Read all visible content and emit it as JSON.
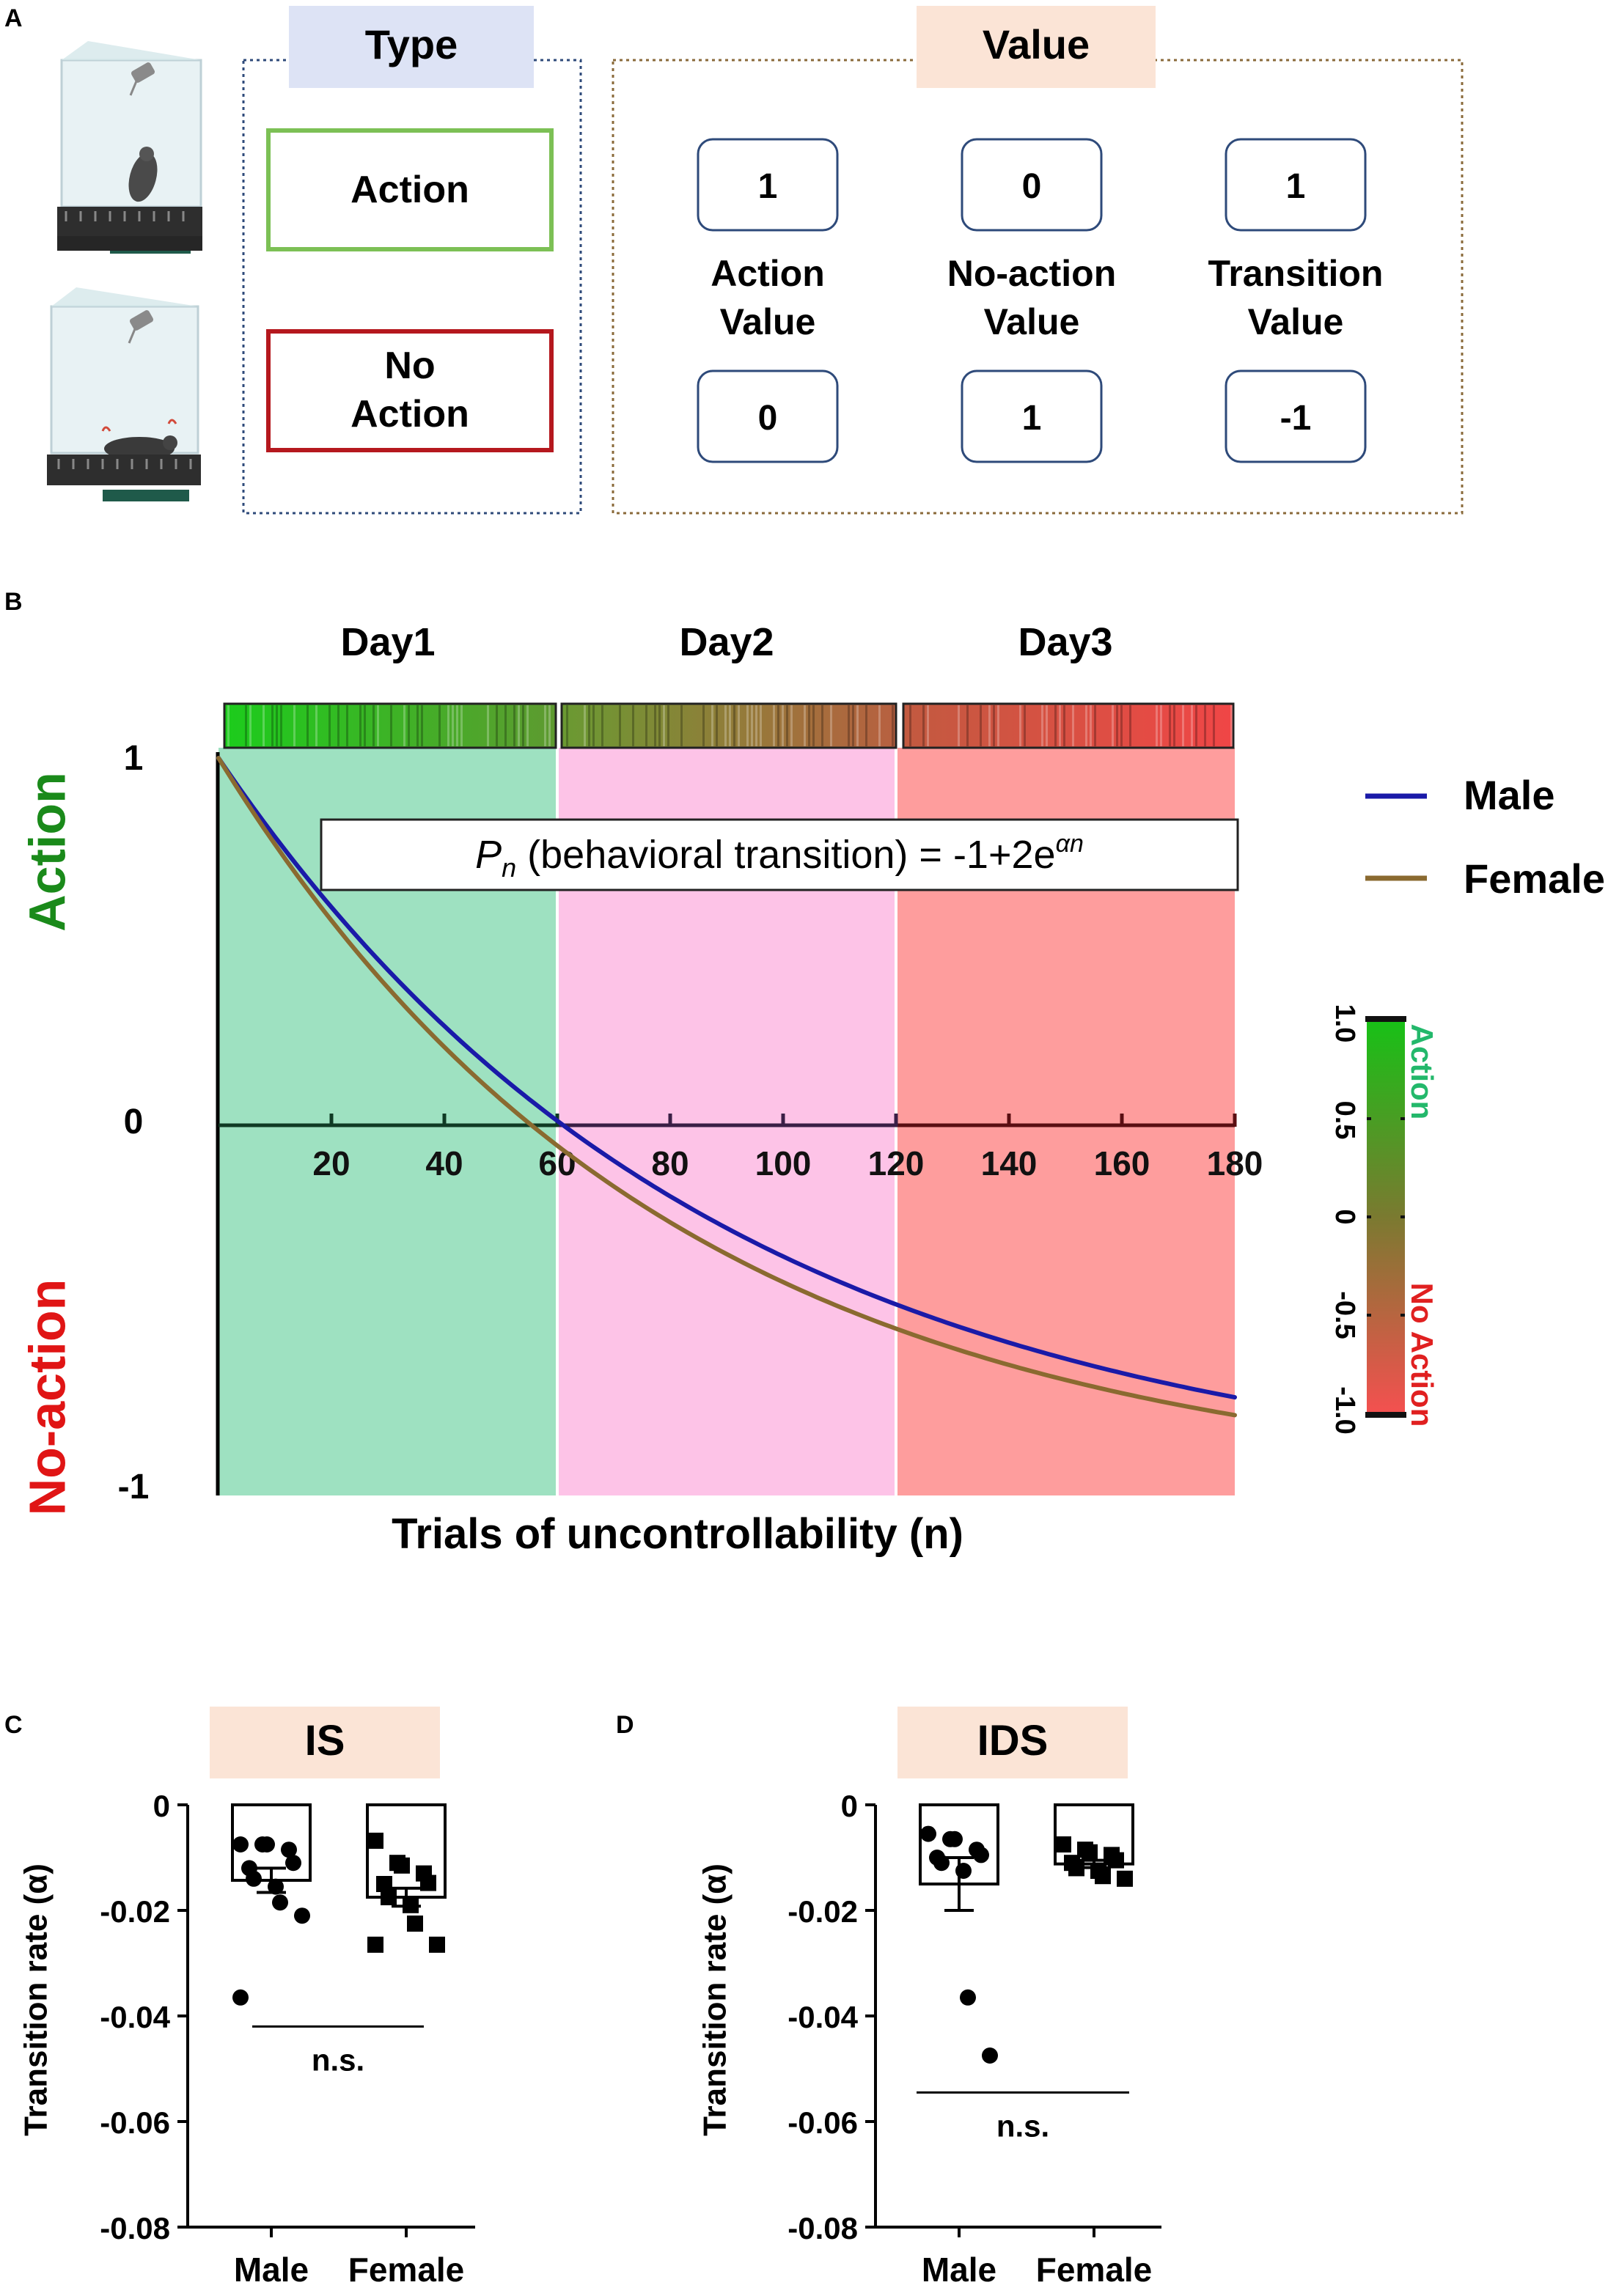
{
  "panel_a": {
    "letter": "A",
    "type_header": "Type",
    "value_header": "Value",
    "action_label": "Action",
    "noaction_label_line1": "No",
    "noaction_label_line2": "Action",
    "columns": [
      {
        "title_line1": "Action",
        "title_line2": "Value",
        "top": "1",
        "bottom": "0"
      },
      {
        "title_line1": "No-action",
        "title_line2": "Value",
        "top": "0",
        "bottom": "1"
      },
      {
        "title_line1": "Transition",
        "title_line2": "Value",
        "top": "1",
        "bottom": "-1"
      }
    ],
    "colors": {
      "type_bg": "#dde3f5",
      "value_bg": "#fbe4d6",
      "action_border": "#7cc055",
      "noaction_border": "#b5181e",
      "value_box": "#2e4a7a"
    }
  },
  "chart_data": [
    {
      "id": "B",
      "type": "line",
      "letter": "B",
      "days": [
        "Day1",
        "Day2",
        "Day3"
      ],
      "day_ranges": [
        [
          0,
          60
        ],
        [
          60,
          120
        ],
        [
          120,
          180
        ]
      ],
      "day_colors": [
        "#9ee1c1",
        "#fdc3e7",
        "#fe9d9d"
      ],
      "x_ticks": [
        20,
        40,
        60,
        80,
        100,
        120,
        140,
        160,
        180
      ],
      "x_tick_labels": [
        "20",
        "40",
        "60",
        "80",
        "100",
        "120",
        "140",
        "160",
        "180"
      ],
      "xlim": [
        0,
        180
      ],
      "ylim": [
        -1,
        1
      ],
      "y_tick_labels": [
        "1",
        "0",
        "-1"
      ],
      "y_top_label": "Action",
      "y_bottom_label": "No-action",
      "xlabel": "Trials of uncontrollability (n)",
      "equation_prefix": "P",
      "equation_sub": "n",
      "equation_main": " (behavioral transition) = -1+2e",
      "equation_sup": "αn",
      "series": [
        {
          "name": "Male",
          "alpha": -0.01135,
          "color": "#1a1aa8"
        },
        {
          "name": "Female",
          "alpha": -0.0125,
          "color": "#8a6a30"
        }
      ],
      "colorbar": {
        "ticks": [
          "1.0",
          "0.5",
          "0",
          "-0.5",
          "-1.0"
        ],
        "top_label": "Action",
        "bottom_label": "No Action",
        "top_color": "#1ab81a",
        "bottom_color": "#f04646"
      }
    },
    {
      "id": "C",
      "type": "bar",
      "letter": "C",
      "title": "IS",
      "ylabel": "Transition rate (α)",
      "ylim": [
        -0.08,
        0
      ],
      "y_ticks": [
        0,
        -0.02,
        -0.04,
        -0.06,
        -0.08
      ],
      "y_tick_labels": [
        "0",
        "-0.02",
        "-0.04",
        "-0.06",
        "-0.08"
      ],
      "categories": [
        "Male",
        "Female"
      ],
      "means": [
        -0.0143,
        -0.0175
      ],
      "sems": [
        0.0023,
        0.0017
      ],
      "points": [
        [
          -0.0075,
          -0.0075,
          -0.0075,
          -0.0085,
          -0.011,
          -0.012,
          -0.014,
          -0.0155,
          -0.0185,
          -0.021,
          -0.0365
        ],
        [
          -0.0068,
          -0.011,
          -0.0115,
          -0.013,
          -0.0148,
          -0.015,
          -0.0175,
          -0.019,
          -0.0225,
          -0.0265,
          -0.0265
        ]
      ],
      "significance": "n.s.",
      "sig_y": -0.042
    },
    {
      "id": "D",
      "type": "bar",
      "letter": "D",
      "title": "IDS",
      "ylabel": "Transition rate (α)",
      "ylim": [
        -0.08,
        0
      ],
      "y_ticks": [
        0,
        -0.02,
        -0.04,
        -0.06,
        -0.08
      ],
      "y_tick_labels": [
        "0",
        "-0.02",
        "-0.04",
        "-0.06",
        "-0.08"
      ],
      "categories": [
        "Male",
        "Female"
      ],
      "means": [
        -0.015,
        -0.0112
      ],
      "sems": [
        0.005,
        0.0007
      ],
      "points": [
        [
          -0.0055,
          -0.0065,
          -0.0065,
          -0.0085,
          -0.0095,
          -0.01,
          -0.011,
          -0.0125,
          -0.0365,
          -0.0475
        ],
        [
          -0.0075,
          -0.0085,
          -0.009,
          -0.0095,
          -0.0105,
          -0.011,
          -0.012,
          -0.0125,
          -0.0135,
          -0.014
        ]
      ],
      "significance": "n.s.",
      "sig_y": -0.0545
    }
  ]
}
